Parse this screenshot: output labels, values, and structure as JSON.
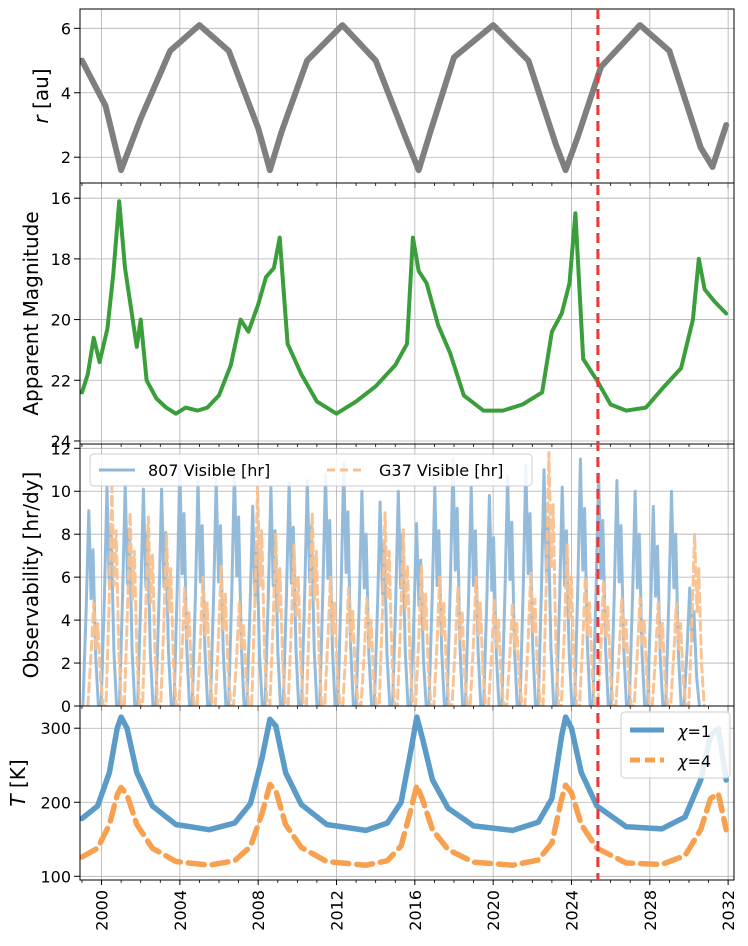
{
  "chart_data": [
    {
      "panel": "distance",
      "type": "line",
      "ylabel_var": "r",
      "ylabel_unit": "[au]",
      "ylim": [
        1.2,
        6.6
      ],
      "yticks": [
        2,
        4,
        6
      ],
      "grid": true,
      "series": [
        {
          "name": "r",
          "color": "#7f7f7f",
          "x": [
            1999.0,
            2000.2,
            2001.0,
            2002.0,
            2003.5,
            2005.0,
            2006.5,
            2008.0,
            2008.6,
            2009.2,
            2010.5,
            2012.3,
            2014.0,
            2015.6,
            2016.2,
            2016.8,
            2018.0,
            2020.0,
            2021.8,
            2023.2,
            2023.7,
            2024.3,
            2025.5,
            2027.5,
            2029.0,
            2030.6,
            2031.2,
            2031.9
          ],
          "y": [
            5.0,
            3.6,
            1.6,
            3.2,
            5.3,
            6.1,
            5.3,
            2.9,
            1.6,
            2.8,
            5.0,
            6.1,
            5.0,
            2.5,
            1.6,
            2.8,
            5.1,
            6.1,
            5.0,
            2.4,
            1.6,
            2.6,
            4.8,
            6.1,
            5.3,
            2.3,
            1.7,
            3.0
          ]
        }
      ]
    },
    {
      "panel": "magnitude",
      "type": "line",
      "ylabel": "Apparent Magnitude",
      "ylim": [
        24.1,
        15.5
      ],
      "inverted": true,
      "yticks": [
        16,
        18,
        20,
        22,
        24
      ],
      "grid": true,
      "series": [
        {
          "name": "magnitude",
          "color": "#3a9e3a",
          "x": [
            1999.0,
            1999.3,
            1999.6,
            1999.9,
            2000.3,
            2000.6,
            2000.9,
            2001.2,
            2001.5,
            2001.8,
            2002.0,
            2002.3,
            2002.8,
            2003.3,
            2003.8,
            2004.3,
            2004.9,
            2005.4,
            2006.0,
            2006.6,
            2007.1,
            2007.5,
            2008.0,
            2008.4,
            2008.8,
            2009.1,
            2009.5,
            2010.2,
            2011.0,
            2012.0,
            2013.0,
            2014.0,
            2015.0,
            2015.6,
            2015.9,
            2016.2,
            2016.6,
            2017.2,
            2017.8,
            2018.5,
            2019.5,
            2020.5,
            2021.5,
            2022.5,
            2023.0,
            2023.5,
            2023.9,
            2024.2,
            2024.6,
            2025.3,
            2026.0,
            2026.8,
            2027.8,
            2028.6,
            2029.6,
            2030.2,
            2030.5,
            2030.8,
            2031.3,
            2031.9
          ],
          "y": [
            22.4,
            21.8,
            20.6,
            21.4,
            20.3,
            18.5,
            16.1,
            18.3,
            19.6,
            20.9,
            20.0,
            22.0,
            22.6,
            22.9,
            23.1,
            22.9,
            23.0,
            22.9,
            22.5,
            21.5,
            20.0,
            20.4,
            19.5,
            18.6,
            18.3,
            17.3,
            20.8,
            21.8,
            22.7,
            23.1,
            22.7,
            22.2,
            21.5,
            20.8,
            17.3,
            18.4,
            18.8,
            20.2,
            21.1,
            22.5,
            23.0,
            23.0,
            22.8,
            22.4,
            20.4,
            19.8,
            18.8,
            16.5,
            21.3,
            22.0,
            22.8,
            23.0,
            22.9,
            22.3,
            21.6,
            20.0,
            18.0,
            19.0,
            19.4,
            19.8
          ]
        }
      ]
    },
    {
      "panel": "observability",
      "type": "line",
      "ylabel": "Observability [hr/dy]",
      "ylim": [
        0,
        12.2
      ],
      "yticks": [
        0,
        2,
        4,
        6,
        8,
        10,
        12
      ],
      "grid": true,
      "legend": "top-left",
      "series": [
        {
          "name": "807 Visible [hr]",
          "color": "#8fb7d8",
          "style": "solid",
          "period_years": 0.93,
          "peaks": [
            9.1,
            10.2,
            10.3,
            10.1,
            10.1,
            11.2,
            10.5,
            10.5,
            11.0,
            9.3,
            10.2,
            10.4,
            10.5,
            10.8,
            11.3,
            10.0,
            9.5,
            10.0,
            8.5,
            10.2,
            11.5,
            10.2,
            9.8,
            10.7,
            11.2,
            11.0,
            10.2,
            11.5,
            10.8,
            10.5,
            10.0,
            9.3,
            10.0,
            5.5
          ]
        },
        {
          "name": "G37 Visible [hr]",
          "color": "#f8c08f",
          "style": "dashed",
          "period_years": 0.93,
          "peaks": [
            4.8,
            10.2,
            9.0,
            8.8,
            8.0,
            5.5,
            6.0,
            6.5,
            4.8,
            10.2,
            8.0,
            7.5,
            9.0,
            6.0,
            5.5,
            5.0,
            9.0,
            8.2,
            6.5,
            6.0,
            5.5,
            6.0,
            5.0,
            4.8,
            6.2,
            11.8,
            7.5,
            6.0,
            5.8,
            5.0,
            5.0,
            4.8,
            4.8,
            8.0
          ]
        }
      ]
    },
    {
      "panel": "temperature",
      "type": "line",
      "ylabel_var": "T",
      "ylabel_unit": "[K]",
      "ylim": [
        95,
        330
      ],
      "yticks": [
        100,
        200,
        300
      ],
      "grid": true,
      "legend": "top-right",
      "xlim": [
        1998.9,
        2032.3
      ],
      "xticks": [
        2000,
        2004,
        2008,
        2012,
        2016,
        2020,
        2024,
        2028,
        2032
      ],
      "xtick_labels": [
        "2000",
        "2004",
        "2008",
        "2012",
        "2016",
        "2020",
        "2024",
        "2028",
        "2032"
      ],
      "series": [
        {
          "name": "χ=1",
          "label_var": "χ",
          "label_value": "=1",
          "color": "#5b9bc8",
          "style": "solid",
          "x": [
            1999.0,
            1999.8,
            2000.4,
            2000.8,
            2001.0,
            2001.3,
            2001.8,
            2002.6,
            2003.8,
            2005.5,
            2006.8,
            2007.6,
            2008.2,
            2008.6,
            2008.9,
            2009.4,
            2010.2,
            2011.5,
            2013.5,
            2014.6,
            2015.3,
            2015.8,
            2016.1,
            2016.4,
            2016.9,
            2017.7,
            2019.0,
            2021.0,
            2022.3,
            2023.0,
            2023.5,
            2023.7,
            2024.0,
            2024.5,
            2025.3,
            2026.8,
            2028.6,
            2029.8,
            2030.6,
            2031.1,
            2031.5,
            2031.9
          ],
          "y": [
            178,
            195,
            240,
            300,
            315,
            300,
            240,
            195,
            170,
            163,
            172,
            198,
            260,
            312,
            303,
            240,
            197,
            170,
            162,
            172,
            200,
            270,
            315,
            285,
            230,
            192,
            168,
            162,
            173,
            205,
            290,
            315,
            300,
            240,
            195,
            167,
            164,
            180,
            230,
            290,
            300,
            230
          ]
        },
        {
          "name": "χ=4",
          "label_var": "χ",
          "label_value": "=4",
          "color": "#f7a150",
          "style": "dashed",
          "x": [
            1999.0,
            1999.8,
            2000.4,
            2000.8,
            2001.0,
            2001.3,
            2001.8,
            2002.6,
            2003.8,
            2005.5,
            2006.8,
            2007.6,
            2008.2,
            2008.6,
            2008.9,
            2009.4,
            2010.2,
            2011.5,
            2013.5,
            2014.6,
            2015.3,
            2015.8,
            2016.1,
            2016.4,
            2016.9,
            2017.7,
            2019.0,
            2021.0,
            2022.3,
            2023.0,
            2023.5,
            2023.7,
            2024.0,
            2024.5,
            2025.3,
            2026.8,
            2028.6,
            2029.8,
            2030.6,
            2031.1,
            2031.5,
            2031.9
          ],
          "y": [
            126,
            138,
            170,
            210,
            220,
            210,
            170,
            138,
            120,
            115,
            121,
            140,
            185,
            224,
            216,
            170,
            139,
            120,
            115,
            121,
            141,
            190,
            223,
            203,
            163,
            136,
            119,
            115,
            122,
            145,
            205,
            223,
            213,
            170,
            138,
            118,
            116,
            128,
            163,
            205,
            212,
            163
          ]
        }
      ]
    }
  ],
  "marker": {
    "x": 2025.35,
    "color": "#e8383b",
    "style": "dashed"
  }
}
